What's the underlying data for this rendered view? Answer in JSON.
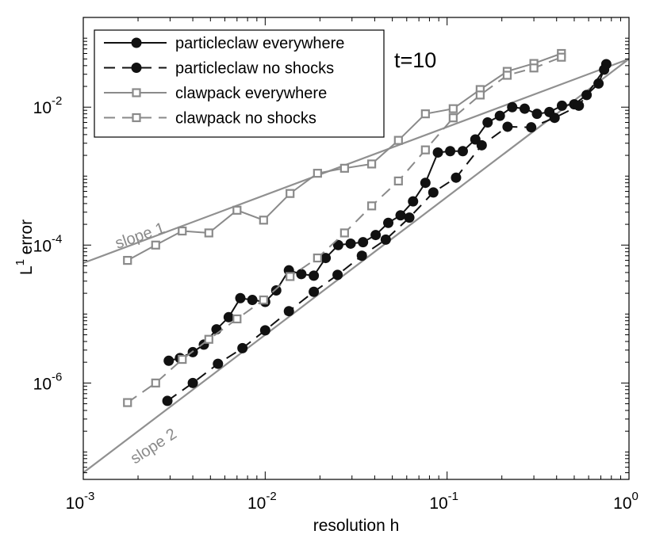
{
  "chart_data": {
    "type": "line",
    "xscale": "log",
    "yscale": "log",
    "xlim": [
      0.001,
      1
    ],
    "ylim": [
      4e-08,
      0.2
    ],
    "xlabel": "resolution h",
    "ylabel_main": "L",
    "ylabel_sup": "1",
    "ylabel_rest": " error",
    "annotation": "t=10",
    "x_ticks": [
      {
        "value": 0.001,
        "base": "10",
        "exp": "-3"
      },
      {
        "value": 0.01,
        "base": "10",
        "exp": "-2"
      },
      {
        "value": 0.1,
        "base": "10",
        "exp": "-1"
      },
      {
        "value": 1,
        "base": "10",
        "exp": "0"
      }
    ],
    "y_ticks": [
      {
        "value": 1e-06,
        "base": "10",
        "exp": "-6"
      },
      {
        "value": 0.0001,
        "base": "10",
        "exp": "-4"
      },
      {
        "value": 0.01,
        "base": "10",
        "exp": "-2"
      }
    ],
    "reference_lines": [
      {
        "label": "slope 1",
        "slope": 1,
        "x": [
          0.001,
          1
        ],
        "y": [
          5.5e-05,
          0.05
        ],
        "color": "#909090"
      },
      {
        "label": "slope 2",
        "slope": 2,
        "x": [
          0.001,
          1
        ],
        "y": [
          5e-08,
          0.05
        ],
        "color": "#909090"
      }
    ],
    "series": [
      {
        "name": "particleclaw everywhere",
        "color": "#111111",
        "dash": "solid",
        "marker": "circle",
        "x": [
          0.00295,
          0.0034,
          0.004,
          0.0046,
          0.0054,
          0.0063,
          0.0073,
          0.0085,
          0.01,
          0.0115,
          0.0135,
          0.0158,
          0.0185,
          0.0215,
          0.0252,
          0.0295,
          0.0345,
          0.0405,
          0.0475,
          0.0555,
          0.065,
          0.076,
          0.089,
          0.104,
          0.122,
          0.143,
          0.167,
          0.195,
          0.228,
          0.267,
          0.312,
          0.365,
          0.428,
          0.5,
          0.585,
          0.68,
          0.75
        ],
        "y": [
          2.1e-06,
          2.3e-06,
          2.8e-06,
          3.6e-06,
          6e-06,
          9e-06,
          1.7e-05,
          1.6e-05,
          1.5e-05,
          2.2e-05,
          4.3e-05,
          3.8e-05,
          3.6e-05,
          6.5e-05,
          0.0001,
          0.000105,
          0.00011,
          0.00014,
          0.00021,
          0.00027,
          0.00043,
          0.0008,
          0.0022,
          0.0023,
          0.0023,
          0.0034,
          0.006,
          0.0075,
          0.01,
          0.0095,
          0.008,
          0.0085,
          0.0105,
          0.011,
          0.015,
          0.022,
          0.042
        ]
      },
      {
        "name": "particleclaw no shocks",
        "color": "#111111",
        "dash": "dashed",
        "marker": "circle",
        "x": [
          0.0029,
          0.004,
          0.0055,
          0.0075,
          0.01,
          0.0135,
          0.0185,
          0.025,
          0.034,
          0.046,
          0.062,
          0.084,
          0.112,
          0.155,
          0.215,
          0.29,
          0.39,
          0.53,
          0.73
        ],
        "y": [
          5.5e-07,
          1e-06,
          1.9e-06,
          3.2e-06,
          5.8e-06,
          1.1e-05,
          2.1e-05,
          3.7e-05,
          7e-05,
          0.00012,
          0.00025,
          0.00058,
          0.00095,
          0.0028,
          0.0052,
          0.0051,
          0.007,
          0.0105,
          0.035
        ]
      },
      {
        "name": "clawpack everywhere",
        "color": "#8a8a8a",
        "dash": "solid",
        "marker": "square",
        "x": [
          0.00175,
          0.0025,
          0.0035,
          0.0049,
          0.007,
          0.0098,
          0.0137,
          0.0194,
          0.0273,
          0.0385,
          0.054,
          0.076,
          0.108,
          0.152,
          0.214,
          0.3,
          0.425
        ],
        "y": [
          6e-05,
          0.0001,
          0.00016,
          0.00015,
          0.00032,
          0.00023,
          0.00056,
          0.0011,
          0.0013,
          0.0015,
          0.0033,
          0.008,
          0.0095,
          0.018,
          0.033,
          0.043,
          0.06
        ]
      },
      {
        "name": "clawpack no shocks",
        "color": "#8a8a8a",
        "dash": "dashed",
        "marker": "square",
        "x": [
          0.00175,
          0.0025,
          0.0035,
          0.0049,
          0.007,
          0.0098,
          0.0137,
          0.0194,
          0.0273,
          0.0385,
          0.054,
          0.076,
          0.108,
          0.152,
          0.214,
          0.3,
          0.425
        ],
        "y": [
          5.2e-07,
          1e-06,
          2.2e-06,
          4.3e-06,
          8.5e-06,
          1.6e-05,
          3.5e-05,
          6.5e-05,
          0.00015,
          0.00037,
          0.00085,
          0.0024,
          0.007,
          0.015,
          0.029,
          0.037,
          0.053
        ]
      }
    ]
  }
}
